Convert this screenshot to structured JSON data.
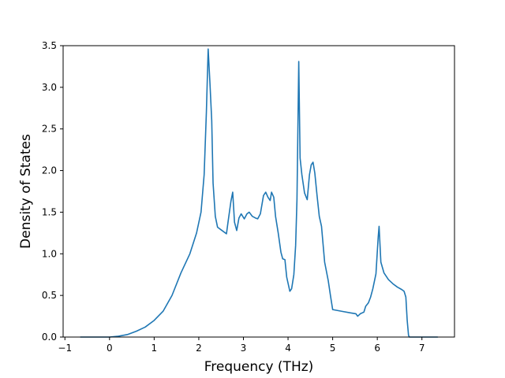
{
  "chart_data": {
    "type": "line",
    "title": "",
    "xlabel": "Frequency (THz)",
    "ylabel": "Density of States",
    "xlim": [
      -1.04,
      7.73
    ],
    "ylim": [
      0.0,
      3.5
    ],
    "x_ticks": [
      -1,
      0,
      1,
      2,
      3,
      4,
      5,
      6,
      7
    ],
    "x_tick_labels": [
      "−1",
      "0",
      "1",
      "2",
      "3",
      "4",
      "5",
      "6",
      "7"
    ],
    "y_ticks": [
      0.0,
      0.5,
      1.0,
      1.5,
      2.0,
      2.5,
      3.0,
      3.5
    ],
    "y_tick_labels": [
      "0.0",
      "0.5",
      "1.0",
      "1.5",
      "2.0",
      "2.5",
      "3.0",
      "3.5"
    ],
    "grid": false,
    "legend": "none",
    "series": [
      {
        "color": "#1f77b4",
        "points": [
          [
            -0.65,
            0.0
          ],
          [
            0.0,
            0.0
          ],
          [
            0.2,
            0.01
          ],
          [
            0.4,
            0.03
          ],
          [
            0.6,
            0.07
          ],
          [
            0.8,
            0.12
          ],
          [
            1.0,
            0.2
          ],
          [
            1.2,
            0.31
          ],
          [
            1.4,
            0.5
          ],
          [
            1.6,
            0.77
          ],
          [
            1.8,
            1.0
          ],
          [
            1.95,
            1.25
          ],
          [
            2.05,
            1.5
          ],
          [
            2.12,
            1.95
          ],
          [
            2.17,
            2.7
          ],
          [
            2.21,
            3.46
          ],
          [
            2.25,
            3.05
          ],
          [
            2.29,
            2.6
          ],
          [
            2.32,
            1.85
          ],
          [
            2.37,
            1.45
          ],
          [
            2.42,
            1.32
          ],
          [
            2.52,
            1.28
          ],
          [
            2.62,
            1.24
          ],
          [
            2.66,
            1.4
          ],
          [
            2.72,
            1.63
          ],
          [
            2.76,
            1.74
          ],
          [
            2.8,
            1.38
          ],
          [
            2.85,
            1.28
          ],
          [
            2.9,
            1.43
          ],
          [
            2.95,
            1.48
          ],
          [
            3.02,
            1.42
          ],
          [
            3.08,
            1.48
          ],
          [
            3.13,
            1.5
          ],
          [
            3.2,
            1.45
          ],
          [
            3.27,
            1.43
          ],
          [
            3.32,
            1.42
          ],
          [
            3.38,
            1.48
          ],
          [
            3.45,
            1.7
          ],
          [
            3.5,
            1.74
          ],
          [
            3.55,
            1.68
          ],
          [
            3.6,
            1.64
          ],
          [
            3.63,
            1.74
          ],
          [
            3.68,
            1.68
          ],
          [
            3.72,
            1.45
          ],
          [
            3.78,
            1.25
          ],
          [
            3.84,
            1.02
          ],
          [
            3.88,
            0.94
          ],
          [
            3.93,
            0.93
          ],
          [
            3.97,
            0.72
          ],
          [
            4.04,
            0.55
          ],
          [
            4.08,
            0.58
          ],
          [
            4.13,
            0.75
          ],
          [
            4.17,
            1.1
          ],
          [
            4.2,
            1.65
          ],
          [
            4.24,
            3.31
          ],
          [
            4.27,
            2.15
          ],
          [
            4.31,
            1.95
          ],
          [
            4.37,
            1.73
          ],
          [
            4.43,
            1.65
          ],
          [
            4.48,
            1.95
          ],
          [
            4.52,
            2.07
          ],
          [
            4.56,
            2.1
          ],
          [
            4.6,
            1.97
          ],
          [
            4.65,
            1.7
          ],
          [
            4.7,
            1.45
          ],
          [
            4.75,
            1.33
          ],
          [
            4.82,
            0.9
          ],
          [
            4.9,
            0.68
          ],
          [
            4.95,
            0.5
          ],
          [
            5.0,
            0.33
          ],
          [
            5.2,
            0.31
          ],
          [
            5.4,
            0.29
          ],
          [
            5.52,
            0.28
          ],
          [
            5.56,
            0.25
          ],
          [
            5.62,
            0.28
          ],
          [
            5.7,
            0.3
          ],
          [
            5.74,
            0.37
          ],
          [
            5.8,
            0.41
          ],
          [
            5.85,
            0.48
          ],
          [
            5.9,
            0.58
          ],
          [
            5.97,
            0.76
          ],
          [
            6.02,
            1.2
          ],
          [
            6.04,
            1.33
          ],
          [
            6.08,
            0.9
          ],
          [
            6.15,
            0.77
          ],
          [
            6.25,
            0.69
          ],
          [
            6.35,
            0.64
          ],
          [
            6.45,
            0.6
          ],
          [
            6.55,
            0.57
          ],
          [
            6.6,
            0.55
          ],
          [
            6.64,
            0.48
          ],
          [
            6.67,
            0.2
          ],
          [
            6.7,
            0.02
          ],
          [
            6.72,
            0.0
          ],
          [
            7.35,
            0.0
          ]
        ]
      }
    ]
  }
}
